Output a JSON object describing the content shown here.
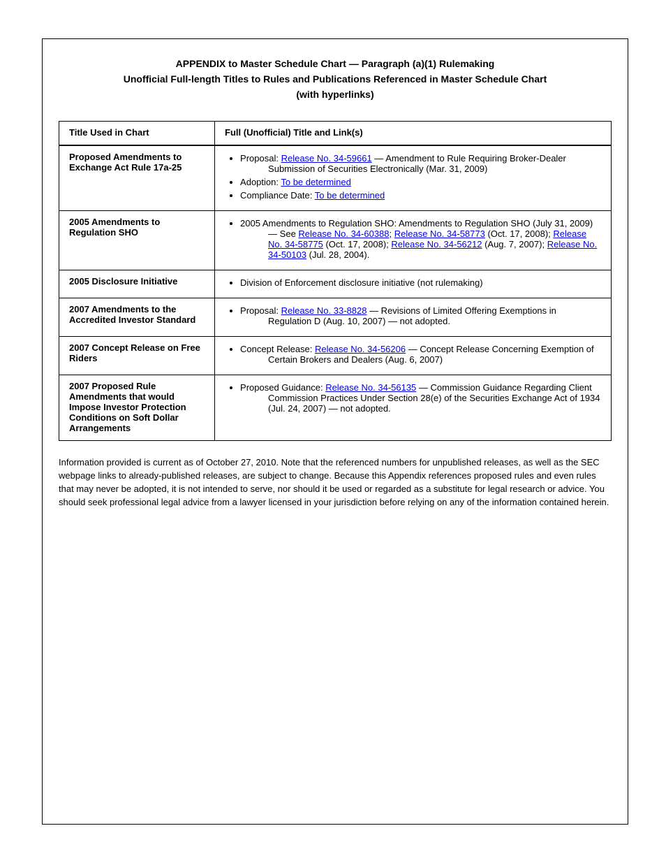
{
  "heading": [
    "APPENDIX to Master Schedule Chart — Paragraph (a)(1) Rulemaking",
    "Unofficial Full-length Titles to Rules and Publications Referenced in Master Schedule Chart",
    "(with hyperlinks)"
  ],
  "table": {
    "header": {
      "left": "Title Used in Chart",
      "right": "Full (Unofficial) Title and Link(s)"
    },
    "rows": [
      {
        "left": "Proposed Amendments to Exchange Act Rule 17a-25",
        "right": {
          "items": [
            {
              "prefix": "Proposal: ",
              "linkText": "Release No. 34-59661",
              "linkHref": "http://www.sec.gov/rules/proposed/2009/34-59661.pdf",
              "title": " — Amendment to Rule Requiring Broker-Dealer Submission of Securities Electronically (Mar. 31, 2009)"
            },
            {
              "prefix": "Adoption: ",
              "linkText": "To be determined",
              "title": ""
            },
            {
              "prefix": "Compliance Date: ",
              "linkText": "To be determined",
              "title": ""
            }
          ]
        }
      },
      {
        "left": "2005 Amendments to Regulation SHO",
        "right": {
          "items": [
            {
              "prefix": "2005 Amendments to Regulation SHO: Amendments to Regulation SHO (July 31, 2009) — ",
              "span": {
                "pre": "See ",
                "links": [
                  {
                    "text": "Release No. 34-60388",
                    "href": "http://www.sec.gov/rules/final/2009/34-60388.pdf"
                  },
                  {
                    "between": "; "
                  },
                  {
                    "text": "Release No. 34-58773",
                    "href": "http://www.sec.gov/rules/final/2008/34-58773.pdf"
                  },
                  {
                    "between": " (Oct. 17, 2008); "
                  },
                  {
                    "text": "Release No. 34-58775",
                    "href": "http://www.sec.gov/rules/final/2008/34-58775.pdf"
                  },
                  {
                    "between": " (Oct. 17, 2008); "
                  },
                  {
                    "text": "Release No. 34-56212",
                    "href": "http://www.sec.gov/rules/final/2007/34-56212.pdf"
                  },
                  {
                    "between": " (Aug. 7, 2007); "
                  },
                  {
                    "text": "Release No. 34-50103",
                    "href": "http://www.sec.gov/rules/final/34-50103.htm"
                  },
                  {
                    "between": " (Jul. 28, 2004)."
                  }
                ]
              }
            }
          ]
        }
      },
      {
        "left": "2005 Disclosure Initiative",
        "right": {
          "items": [
            {
              "prefix": "Division of Enforcement disclosure initiative (not rulemaking)",
              "title": ""
            }
          ]
        }
      },
      {
        "left": "2007 Amendments to the Accredited Investor Standard",
        "right": {
          "items": [
            {
              "prefix": "Proposal: ",
              "linkText": "Release No. 33-8828",
              "linkHref": "http://www.sec.gov/rules/proposed/2007/33-8828.pdf",
              "title": " — Revisions of Limited Offering Exemptions in Regulation D (Aug. 10, 2007) — not adopted."
            }
          ]
        }
      },
      {
        "left": "2007 Concept Release on Free Riders",
        "right": {
          "items": [
            {
              "prefix": "Concept Release: ",
              "linkText": "Release No. 34-56206",
              "linkHref": "http://www.sec.gov/rules/concept/2007/34-56206.pdf",
              "title": " — Concept Release Concerning Exemption of Certain Brokers and Dealers (Aug. 6, 2007)"
            }
          ]
        }
      },
      {
        "left": "2007 Proposed Rule Amendments that would Impose Investor Protection Conditions on Soft Dollar Arrangements",
        "right": {
          "items": [
            {
              "prefix": "Proposed Guidance: ",
              "linkText": "Release No. 34-56135",
              "linkHref": "http://www.sec.gov/rules/proposed/2007/34-56135.pdf",
              "title": " — Commission Guidance Regarding Client Commission Practices Under Section 28(e) of the Securities Exchange Act of 1934 (Jul. 24, 2007) — not adopted."
            }
          ]
        }
      }
    ]
  },
  "notice": "Information provided is current as of October 27, 2010. Note that the referenced numbers for unpublished releases, as well as the SEC webpage links to already-published releases, are subject to change. Because this Appendix references proposed rules and even rules that may never be adopted, it is not intended to serve, nor should it be used or regarded as a substitute for legal research or advice. You should seek professional legal advice from a lawyer licensed in your jurisdiction before relying on any of the information contained herein.",
  "colors": {
    "link": "#0000EE",
    "border": "#000000",
    "background": "#ffffff",
    "text": "#000000"
  },
  "fonts": {
    "base_family": "Arial",
    "heading_size_pt": 10.5,
    "body_size_pt": 9.5
  }
}
